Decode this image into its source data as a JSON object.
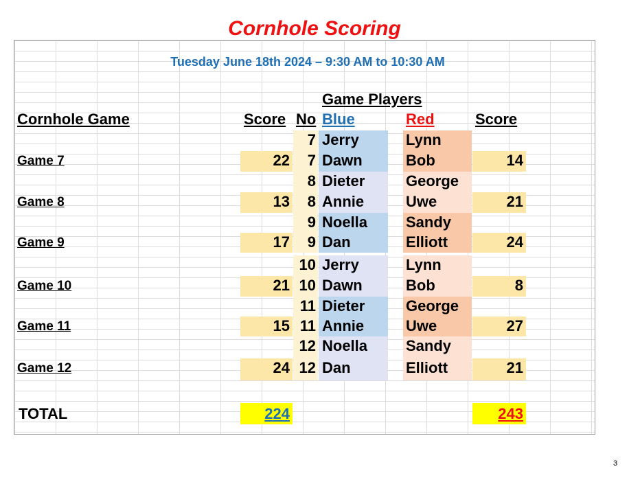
{
  "title": "Cornhole Scoring",
  "date_line": "Tuesday June 18th 2024 – 9:30 AM to 10:30 AM",
  "headers": {
    "game_players": "Game Players",
    "cornhole_game": "Cornhole Game",
    "score_left": "Score",
    "no": "No",
    "blue": "Blue",
    "red": "Red",
    "score_right": "Score"
  },
  "games": [
    {
      "label": "Game 7",
      "no": "7",
      "blue_score": "22",
      "red_score": "14",
      "blue_players": [
        "Jerry",
        "Dawn"
      ],
      "red_players": [
        "Lynn",
        "Bob"
      ]
    },
    {
      "label": "Game 8",
      "no": "8",
      "blue_score": "13",
      "red_score": "21",
      "blue_players": [
        "Dieter",
        "Annie"
      ],
      "red_players": [
        "George",
        "Uwe"
      ]
    },
    {
      "label": "Game 9",
      "no": "9",
      "blue_score": "17",
      "red_score": "24",
      "blue_players": [
        "Noella",
        "Dan"
      ],
      "red_players": [
        "Sandy",
        "Elliott"
      ]
    },
    {
      "label": "Game 10",
      "no": "10",
      "blue_score": "21",
      "red_score": "8",
      "blue_players": [
        "Jerry",
        "Dawn"
      ],
      "red_players": [
        "Lynn",
        "Bob"
      ]
    },
    {
      "label": "Game 11",
      "no": "11",
      "blue_score": "15",
      "red_score": "27",
      "blue_players": [
        "Dieter",
        "Annie"
      ],
      "red_players": [
        "George",
        "Uwe"
      ]
    },
    {
      "label": "Game 12",
      "no": "12",
      "blue_score": "24",
      "red_score": "21",
      "blue_players": [
        "Noella",
        "Dan"
      ],
      "red_players": [
        "Sandy",
        "Elliott"
      ]
    }
  ],
  "total": {
    "label": "TOTAL",
    "blue": "224",
    "red": "243"
  },
  "page_number": "3",
  "colors": {
    "title": "#ee1111",
    "date": "#1f6fb5",
    "blue": "#1f6fb5",
    "red": "#ee1111",
    "score_fill": "#fde7a8",
    "total_fill": "#ffff00"
  }
}
